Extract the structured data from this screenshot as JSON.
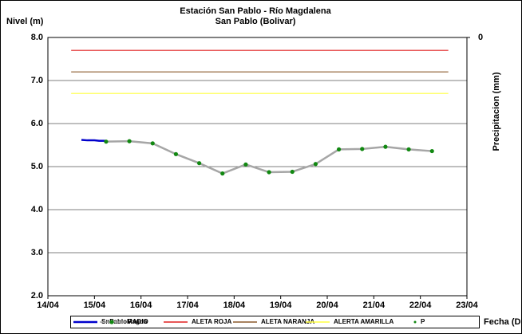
{
  "chart_data": {
    "type": "line",
    "title": "Estación San Pablo - Río Magdalena",
    "subtitle": "San Pablo (Bolivar)",
    "ylabel": "Nivel (m)",
    "xlabel": "Fecha (DD/MM)",
    "y2label": "Precipitacion (mm)",
    "xlim": [
      14,
      23
    ],
    "xticks": [
      {
        "value": 14,
        "label": "14/04"
      },
      {
        "value": 15,
        "label": "15/04"
      },
      {
        "value": 16,
        "label": "16/04"
      },
      {
        "value": 17,
        "label": "17/04"
      },
      {
        "value": 18,
        "label": "18/04"
      },
      {
        "value": 19,
        "label": "19/04"
      },
      {
        "value": 20,
        "label": "20/04"
      },
      {
        "value": 21,
        "label": "21/04"
      },
      {
        "value": 22,
        "label": "22/04"
      },
      {
        "value": 23,
        "label": "23/04"
      }
    ],
    "ylim": [
      2,
      8
    ],
    "yticks": [
      {
        "value": 2,
        "label": "2.0"
      },
      {
        "value": 3,
        "label": "3.0"
      },
      {
        "value": 4,
        "label": "4.0"
      },
      {
        "value": 5,
        "label": "5.0"
      },
      {
        "value": 6,
        "label": "6.0"
      },
      {
        "value": 7,
        "label": "7.0"
      },
      {
        "value": 8,
        "label": "8.0"
      }
    ],
    "y2ticks": [
      0
    ],
    "grid": true,
    "legend": "bottom",
    "series": [
      {
        "name": "SnPabloMagda",
        "color": "#0000cc",
        "style": "line",
        "x": [
          14.72,
          14.85,
          15.0,
          15.1,
          15.23
        ],
        "values": [
          5.62,
          5.61,
          5.61,
          5.6,
          5.6
        ]
      },
      {
        "name": "RADIO",
        "color": "#a6a6a6",
        "marker_color": "#118811",
        "style": "line-markers",
        "x": [
          15.25,
          15.75,
          16.25,
          16.75,
          17.25,
          17.75,
          18.25,
          18.75,
          19.25,
          19.75,
          20.25,
          20.75,
          21.25,
          21.75,
          22.25
        ],
        "values": [
          5.58,
          5.59,
          5.54,
          5.29,
          5.08,
          4.84,
          5.05,
          4.87,
          4.88,
          5.06,
          5.4,
          5.41,
          5.46,
          5.4,
          5.36
        ]
      },
      {
        "name": "ALETA ROJA",
        "color": "#e02020",
        "style": "line",
        "x": [
          14.5,
          22.6
        ],
        "values": [
          7.7,
          7.7
        ]
      },
      {
        "name": "ALETA NARANJA",
        "color": "#8b5a2b",
        "style": "line",
        "x": [
          14.5,
          22.6
        ],
        "values": [
          7.2,
          7.2
        ]
      },
      {
        "name": "ALERTA AMARILLA",
        "color": "#ffff40",
        "style": "line",
        "x": [
          14.5,
          22.6
        ],
        "values": [
          6.7,
          6.7
        ]
      },
      {
        "name": "P",
        "color": "#118811",
        "style": "markers",
        "x": [],
        "values": []
      }
    ]
  }
}
